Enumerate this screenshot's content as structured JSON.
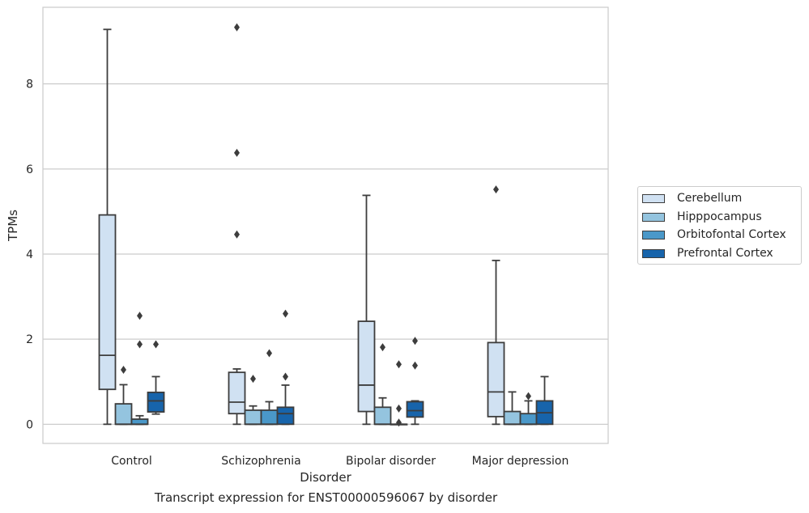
{
  "caption": "Transcript expression for ENST00000596067 by disorder",
  "chart_data": {
    "type": "boxplot",
    "xlabel": "Disorder",
    "ylabel": "TPMs",
    "ylim": [
      -0.45,
      9.8
    ],
    "yticks": [
      0,
      2,
      4,
      6,
      8
    ],
    "grid": "horizontal",
    "legend_placement": "right",
    "categories": [
      "Control",
      "Schizophrenia",
      "Bipolar disorder",
      "Major depression"
    ],
    "series": [
      {
        "name": "Cerebellum",
        "color": "#d0e1f2",
        "boxes": [
          {
            "whisker_low": 0,
            "q1": 0.82,
            "median": 1.62,
            "q3": 4.92,
            "whisker_high": 9.28,
            "outliers": []
          },
          {
            "whisker_low": 0,
            "q1": 0.25,
            "median": 0.52,
            "q3": 1.22,
            "whisker_high": 1.3,
            "outliers": [
              4.46,
              6.38,
              9.33
            ]
          },
          {
            "whisker_low": 0,
            "q1": 0.3,
            "median": 0.92,
            "q3": 2.42,
            "whisker_high": 5.38,
            "outliers": []
          },
          {
            "whisker_low": 0,
            "q1": 0.18,
            "median": 0.76,
            "q3": 1.92,
            "whisker_high": 3.85,
            "outliers": [
              5.52
            ]
          }
        ]
      },
      {
        "name": "Hipppocampus",
        "color": "#94c4df",
        "boxes": [
          {
            "whisker_low": 0,
            "q1": 0,
            "median": 0,
            "q3": 0.48,
            "whisker_high": 0.93,
            "outliers": [
              1.28
            ]
          },
          {
            "whisker_low": 0,
            "q1": 0,
            "median": 0,
            "q3": 0.33,
            "whisker_high": 0.43,
            "outliers": [
              1.07
            ]
          },
          {
            "whisker_low": 0,
            "q1": 0,
            "median": 0,
            "q3": 0.4,
            "whisker_high": 0.62,
            "outliers": [
              1.81
            ]
          },
          {
            "whisker_low": 0,
            "q1": 0,
            "median": 0,
            "q3": 0.3,
            "whisker_high": 0.76,
            "outliers": []
          }
        ]
      },
      {
        "name": "Orbitofontal Cortex",
        "color": "#4a98c9",
        "boxes": [
          {
            "whisker_low": 0,
            "q1": 0,
            "median": 0,
            "q3": 0.12,
            "whisker_high": 0.2,
            "outliers": [
              1.88,
              2.55
            ]
          },
          {
            "whisker_low": 0,
            "q1": 0,
            "median": 0,
            "q3": 0.33,
            "whisker_high": 0.53,
            "outliers": [
              1.67
            ]
          },
          {
            "whisker_low": 0,
            "q1": 0,
            "median": 0,
            "q3": 0,
            "whisker_high": 0,
            "outliers": [
              0.04,
              0.37,
              1.41
            ]
          },
          {
            "whisker_low": 0,
            "q1": 0,
            "median": 0,
            "q3": 0.25,
            "whisker_high": 0.55,
            "outliers": [
              0.66
            ]
          }
        ]
      },
      {
        "name": "Prefrontal Cortex",
        "color": "#1764ab",
        "boxes": [
          {
            "whisker_low": 0.24,
            "q1": 0.29,
            "median": 0.55,
            "q3": 0.75,
            "whisker_high": 1.12,
            "outliers": [
              1.88
            ]
          },
          {
            "whisker_low": 0,
            "q1": 0,
            "median": 0.25,
            "q3": 0.4,
            "whisker_high": 0.92,
            "outliers": [
              1.12,
              2.6
            ]
          },
          {
            "whisker_low": 0,
            "q1": 0.17,
            "median": 0.32,
            "q3": 0.53,
            "whisker_high": 0.55,
            "outliers": [
              1.38,
              1.96
            ]
          },
          {
            "whisker_low": 0,
            "q1": 0,
            "median": 0.27,
            "q3": 0.55,
            "whisker_high": 1.12,
            "outliers": []
          }
        ]
      }
    ]
  }
}
